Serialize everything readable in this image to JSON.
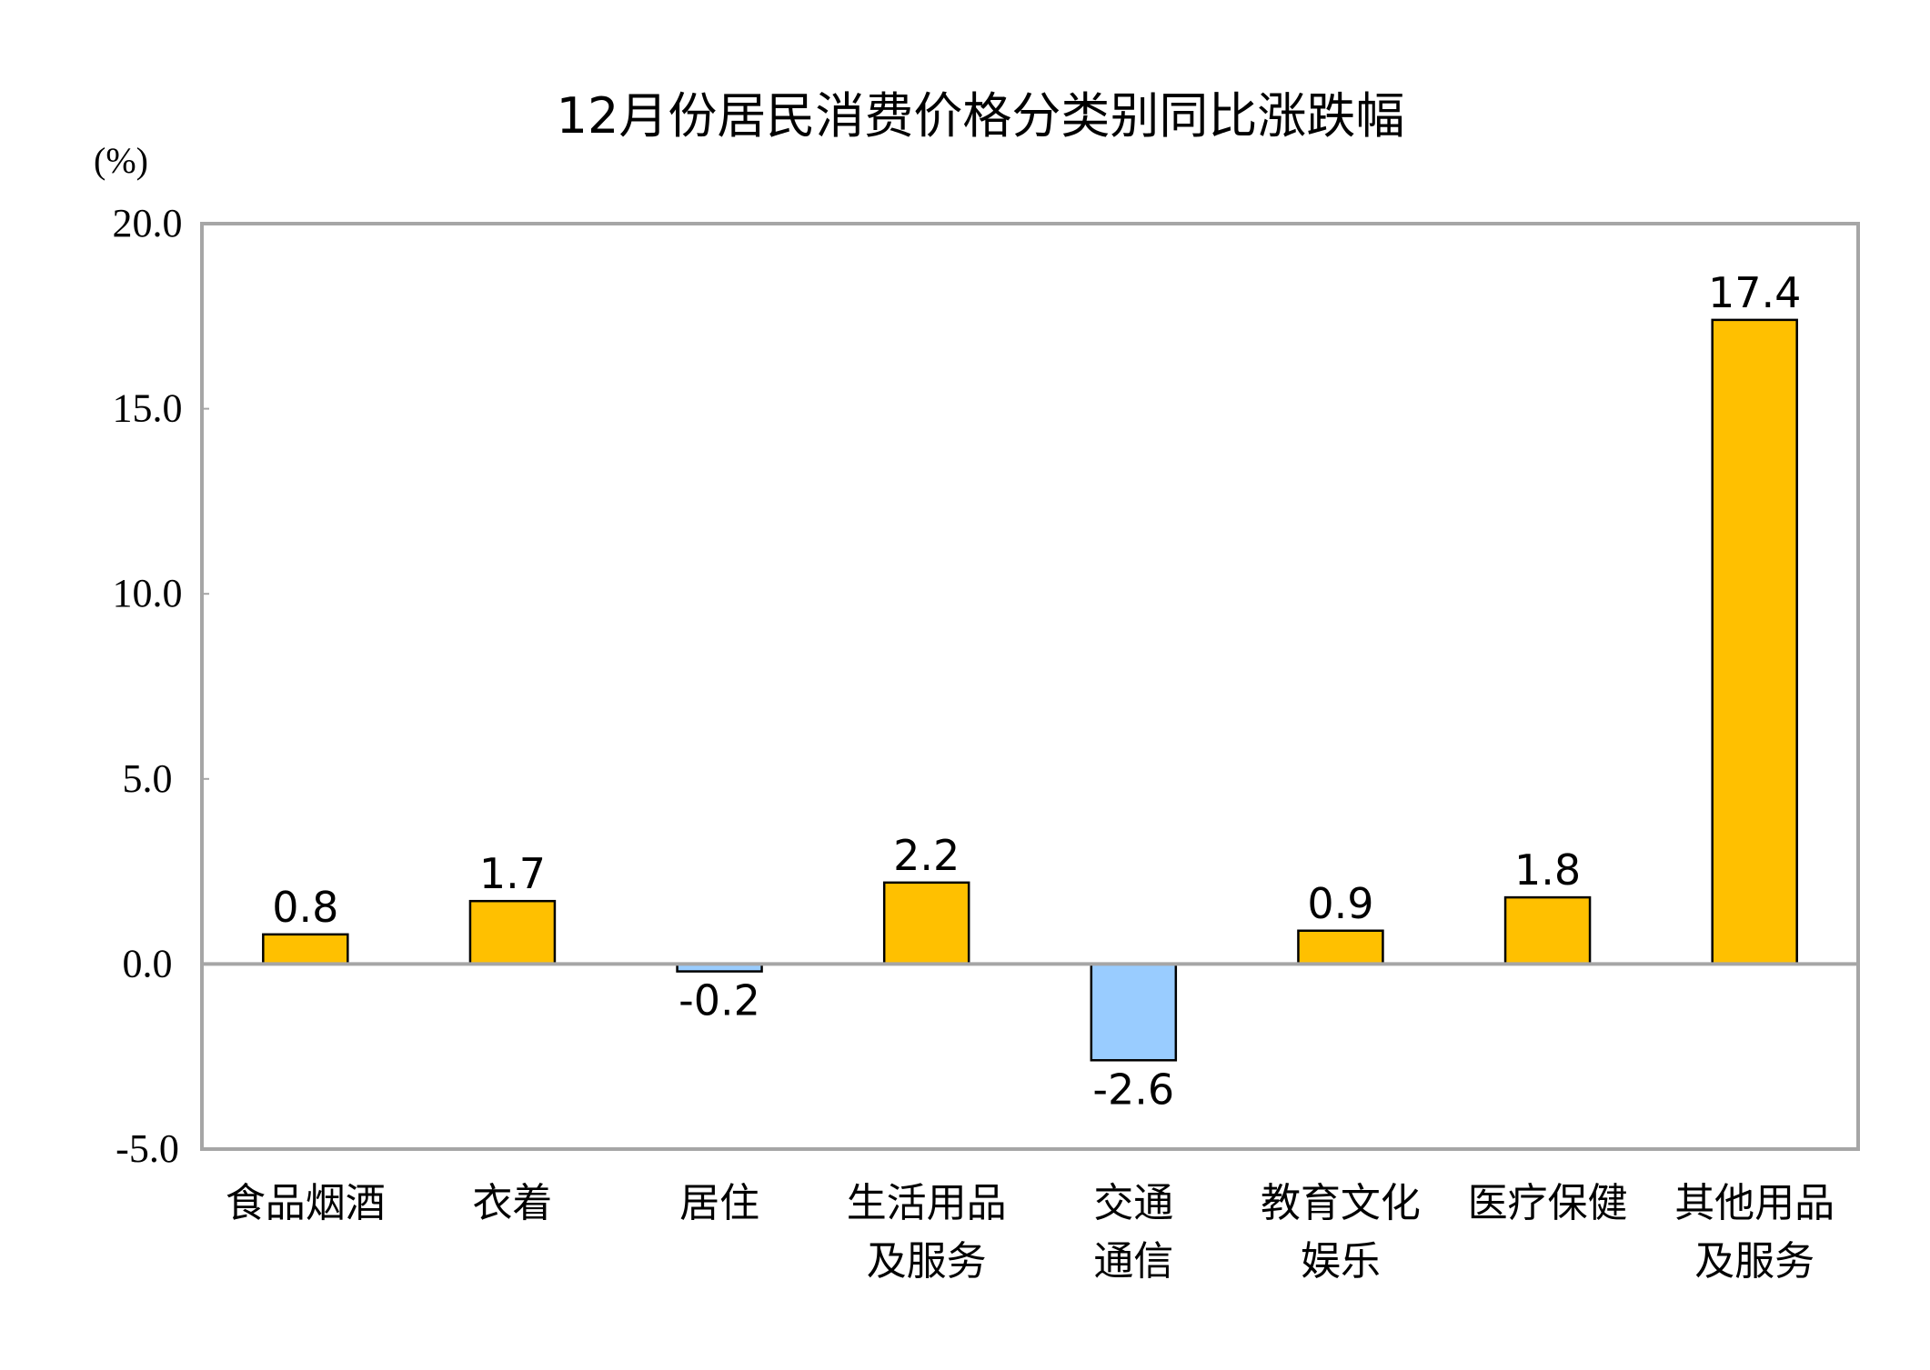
{
  "chart_data": {
    "type": "bar",
    "title": "12月份居民消费价格分类别同比涨跌幅",
    "ylabel": "(%)",
    "xlabel": "",
    "ylim": [
      -5,
      20
    ],
    "yticks": [
      "20.0",
      "15.0",
      "10.0",
      "5.0",
      "0.0",
      "-5.0"
    ],
    "grid": false,
    "categories": [
      [
        "食品烟酒"
      ],
      [
        "衣着"
      ],
      [
        "居住"
      ],
      [
        "生活用品",
        "及服务"
      ],
      [
        "交通",
        "通信"
      ],
      [
        "教育文化",
        "娱乐"
      ],
      [
        "医疗保健"
      ],
      [
        "其他用品",
        "及服务"
      ]
    ],
    "values": [
      0.8,
      1.7,
      -0.2,
      2.2,
      -2.6,
      0.9,
      1.8,
      17.4
    ],
    "data_labels": [
      "0.8",
      "1.7",
      "-0.2",
      "2.2",
      "-2.6",
      "0.9",
      "1.8",
      "17.4"
    ],
    "colors": {
      "positive": "#FFC000",
      "negative": "#99CCFF",
      "frame": "#A6A6A6"
    }
  }
}
